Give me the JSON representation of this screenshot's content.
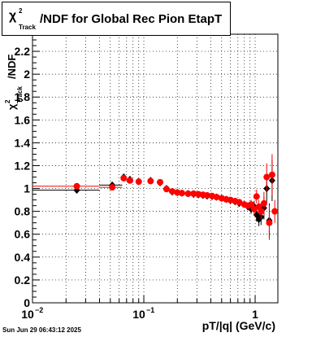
{
  "chart_data": {
    "type": "scatter",
    "title_symbol": "χ",
    "title_sup": "2",
    "title_sub": "Track",
    "title_rest": "/NDF for Global Rec Pion EtapT",
    "xlabel": "pT/|q| (GeV/c)",
    "ylabel_symbol": "χ",
    "ylabel_sup": "2",
    "ylabel_sub": "Track",
    "ylabel_rest": "/NDF",
    "x_scale": "log",
    "xlim": [
      0.01,
      1.6
    ],
    "ylim": [
      0,
      2.35
    ],
    "grid": true,
    "x_tick_labels": [
      {
        "value": 0.01,
        "base": "10",
        "exp": "−2"
      },
      {
        "value": 0.1,
        "base": "10",
        "exp": "−1"
      },
      {
        "value": 1,
        "base": "1",
        "exp": ""
      }
    ],
    "y_ticks": [
      {
        "value": 0,
        "label": "0"
      },
      {
        "value": 0.2,
        "label": "0.2"
      },
      {
        "value": 0.4,
        "label": "0.4"
      },
      {
        "value": 0.6,
        "label": "0.6"
      },
      {
        "value": 0.8,
        "label": "0.8"
      },
      {
        "value": 1.0,
        "label": "1"
      },
      {
        "value": 1.2,
        "label": "1.2"
      },
      {
        "value": 1.4,
        "label": "1.4"
      },
      {
        "value": 1.6,
        "label": "1.6"
      },
      {
        "value": 1.8,
        "label": "1.8"
      },
      {
        "value": 2.0,
        "label": "2"
      },
      {
        "value": 2.2,
        "label": "2.2"
      }
    ],
    "series": [
      {
        "color": "#000000",
        "marker": "diamond",
        "points": [
          {
            "x": 0.025,
            "y": 0.985,
            "xerr": 0.015
          },
          {
            "x": 0.052,
            "y": 1.03,
            "xerr": 0.012
          },
          {
            "x": 0.066,
            "y": 1.1
          },
          {
            "x": 0.075,
            "y": 1.08
          },
          {
            "x": 0.09,
            "y": 1.06
          },
          {
            "x": 0.115,
            "y": 1.07
          },
          {
            "x": 0.14,
            "y": 1.05
          },
          {
            "x": 0.16,
            "y": 1.0
          },
          {
            "x": 0.18,
            "y": 0.97
          },
          {
            "x": 0.2,
            "y": 0.965
          },
          {
            "x": 0.22,
            "y": 0.96
          },
          {
            "x": 0.25,
            "y": 0.955
          },
          {
            "x": 0.28,
            "y": 0.95
          },
          {
            "x": 0.31,
            "y": 0.945
          },
          {
            "x": 0.34,
            "y": 0.94
          },
          {
            "x": 0.37,
            "y": 0.935
          },
          {
            "x": 0.41,
            "y": 0.93
          },
          {
            "x": 0.45,
            "y": 0.925
          },
          {
            "x": 0.5,
            "y": 0.915
          },
          {
            "x": 0.55,
            "y": 0.905
          },
          {
            "x": 0.6,
            "y": 0.895
          },
          {
            "x": 0.66,
            "y": 0.885
          },
          {
            "x": 0.72,
            "y": 0.87
          },
          {
            "x": 0.8,
            "y": 0.86
          },
          {
            "x": 0.86,
            "y": 0.84
          },
          {
            "x": 0.92,
            "y": 0.82,
            "yerr": 0.04
          },
          {
            "x": 0.98,
            "y": 0.84,
            "yerr": 0.05
          },
          {
            "x": 1.03,
            "y": 0.77,
            "yerr": 0.06
          },
          {
            "x": 1.08,
            "y": 0.73,
            "yerr": 0.06
          },
          {
            "x": 1.13,
            "y": 0.75,
            "yerr": 0.07
          },
          {
            "x": 1.2,
            "y": 0.83,
            "yerr": 0.1
          },
          {
            "x": 1.27,
            "y": 1.0,
            "yerr": 0.12
          },
          {
            "x": 1.34,
            "y": 0.72,
            "yerr": 0.15
          },
          {
            "x": 1.42,
            "y": 1.07,
            "yerr": 0.18
          }
        ]
      },
      {
        "color": "#ff0000",
        "marker": "circle",
        "points": [
          {
            "x": 0.025,
            "y": 1.02,
            "xerr": 0.015
          },
          {
            "x": 0.052,
            "y": 1.01,
            "xerr": 0.012
          },
          {
            "x": 0.066,
            "y": 1.09
          },
          {
            "x": 0.075,
            "y": 1.07
          },
          {
            "x": 0.09,
            "y": 1.06
          },
          {
            "x": 0.115,
            "y": 1.065
          },
          {
            "x": 0.14,
            "y": 1.055
          },
          {
            "x": 0.16,
            "y": 0.995
          },
          {
            "x": 0.18,
            "y": 0.975
          },
          {
            "x": 0.2,
            "y": 0.965
          },
          {
            "x": 0.22,
            "y": 0.96
          },
          {
            "x": 0.25,
            "y": 0.955
          },
          {
            "x": 0.28,
            "y": 0.955
          },
          {
            "x": 0.31,
            "y": 0.95
          },
          {
            "x": 0.34,
            "y": 0.945
          },
          {
            "x": 0.37,
            "y": 0.94
          },
          {
            "x": 0.41,
            "y": 0.935
          },
          {
            "x": 0.45,
            "y": 0.925
          },
          {
            "x": 0.5,
            "y": 0.915
          },
          {
            "x": 0.55,
            "y": 0.905
          },
          {
            "x": 0.6,
            "y": 0.9
          },
          {
            "x": 0.66,
            "y": 0.89
          },
          {
            "x": 0.72,
            "y": 0.88
          },
          {
            "x": 0.8,
            "y": 0.86
          },
          {
            "x": 0.86,
            "y": 0.85
          },
          {
            "x": 0.92,
            "y": 0.86,
            "yerr": 0.04
          },
          {
            "x": 0.98,
            "y": 0.82,
            "yerr": 0.05
          },
          {
            "x": 1.03,
            "y": 0.93,
            "yerr": 0.06
          },
          {
            "x": 1.08,
            "y": 0.84,
            "yerr": 0.06
          },
          {
            "x": 1.13,
            "y": 0.8,
            "yerr": 0.07
          },
          {
            "x": 1.2,
            "y": 0.87,
            "yerr": 0.1
          },
          {
            "x": 1.27,
            "y": 1.1,
            "yerr": 0.12
          },
          {
            "x": 1.34,
            "y": 0.7,
            "yerr": 0.15
          },
          {
            "x": 1.42,
            "y": 1.12,
            "yerr": 0.18
          },
          {
            "x": 1.5,
            "y": 0.8,
            "yerr": 0.1
          }
        ]
      }
    ]
  },
  "timestamp": "Sun Jun 29 06:43:12 2025"
}
